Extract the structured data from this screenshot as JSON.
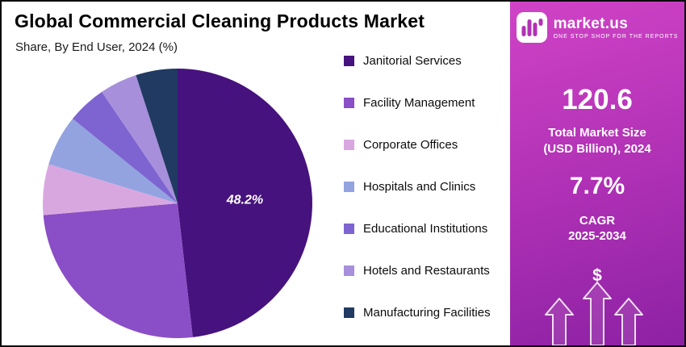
{
  "header": {
    "title": "Global Commercial Cleaning Products Market",
    "subtitle": "Share, By End User, 2024 (%)"
  },
  "chart_data": {
    "type": "pie",
    "title": "Global Commercial Cleaning Products Market",
    "subtitle": "Share, By End User, 2024 (%)",
    "unit": "%",
    "categories": [
      "Janitorial Services",
      "Facility Management",
      "Corporate Offices",
      "Hospitals and Clinics",
      "Educational Institutions",
      "Hotels and Restaurants",
      "Manufacturing Facilities"
    ],
    "values": [
      48.2,
      25.4,
      6.1,
      6.1,
      4.7,
      4.5,
      5.0
    ],
    "colors": [
      "#46127d",
      "#8a4ec6",
      "#d9a7e0",
      "#93a3e0",
      "#7d64d0",
      "#a78fdb",
      "#203a61"
    ],
    "legend_position": "right",
    "start_angle_deg": 0,
    "label_on_chart": {
      "slice_index": 0,
      "text": "48.2%"
    }
  },
  "sidebar": {
    "brand_name": "market.us",
    "brand_tagline": "ONE STOP SHOP FOR THE REPORTS",
    "market_size_value": "120.6",
    "market_size_label_line1": "Total Market Size",
    "market_size_label_line2": "(USD Billion), 2024",
    "cagr_value": "7.7%",
    "cagr_label_line1": "CAGR",
    "cagr_label_line2": "2025-2034",
    "dollar_symbol": "$",
    "gradient_top": "#d043c6",
    "gradient_bottom": "#8d21a4"
  }
}
